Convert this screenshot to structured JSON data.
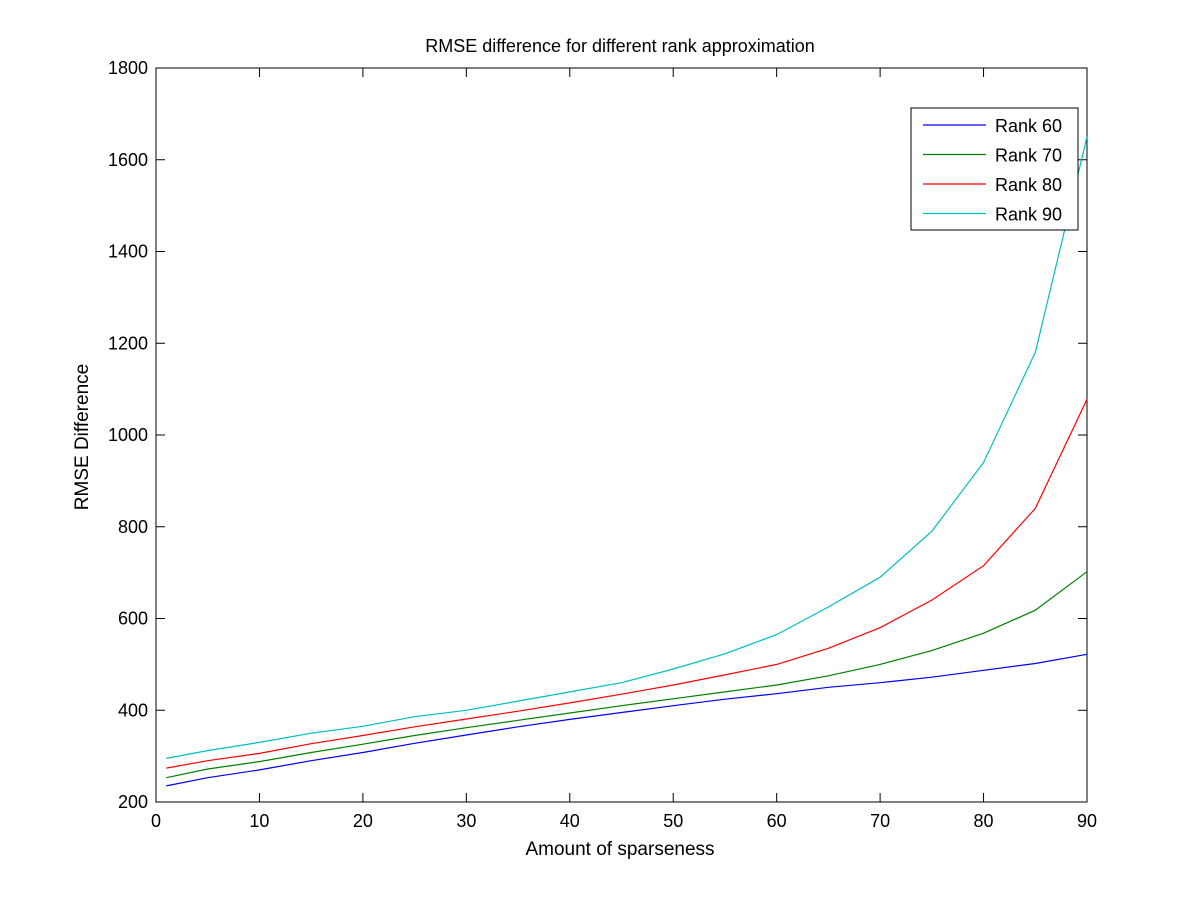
{
  "chart_data": {
    "type": "line",
    "title": "RMSE difference for different rank approximation",
    "xlabel": "Amount of sparseness",
    "ylabel": "RMSE Difference",
    "xlim": [
      0,
      90
    ],
    "ylim": [
      200,
      1800
    ],
    "xticks": [
      0,
      10,
      20,
      30,
      40,
      50,
      60,
      70,
      80,
      90
    ],
    "yticks": [
      200,
      400,
      600,
      800,
      1000,
      1200,
      1400,
      1600,
      1800
    ],
    "grid": false,
    "legend_position": "top-right",
    "x": [
      1,
      5,
      10,
      15,
      20,
      25,
      30,
      35,
      40,
      45,
      50,
      55,
      60,
      65,
      70,
      75,
      80,
      85,
      90
    ],
    "series": [
      {
        "name": "Rank 60",
        "color": "#0000ff",
        "values": [
          235,
          253,
          270,
          290,
          308,
          328,
          346,
          364,
          380,
          395,
          410,
          424,
          436,
          450,
          460,
          472,
          487,
          502,
          522
        ]
      },
      {
        "name": "Rank 70",
        "color": "#008000",
        "values": [
          253,
          272,
          288,
          308,
          326,
          345,
          362,
          378,
          394,
          410,
          425,
          440,
          455,
          475,
          500,
          530,
          568,
          618,
          702
        ]
      },
      {
        "name": "Rank 80",
        "color": "#ff0000",
        "values": [
          274,
          290,
          306,
          327,
          345,
          364,
          381,
          398,
          416,
          435,
          455,
          477,
          500,
          535,
          580,
          640,
          715,
          840,
          1078
        ]
      },
      {
        "name": "Rank 90",
        "color": "#00bfbf",
        "values": [
          295,
          312,
          330,
          350,
          365,
          386,
          400,
          420,
          440,
          460,
          490,
          523,
          565,
          625,
          690,
          790,
          940,
          1180,
          1650
        ]
      }
    ]
  }
}
